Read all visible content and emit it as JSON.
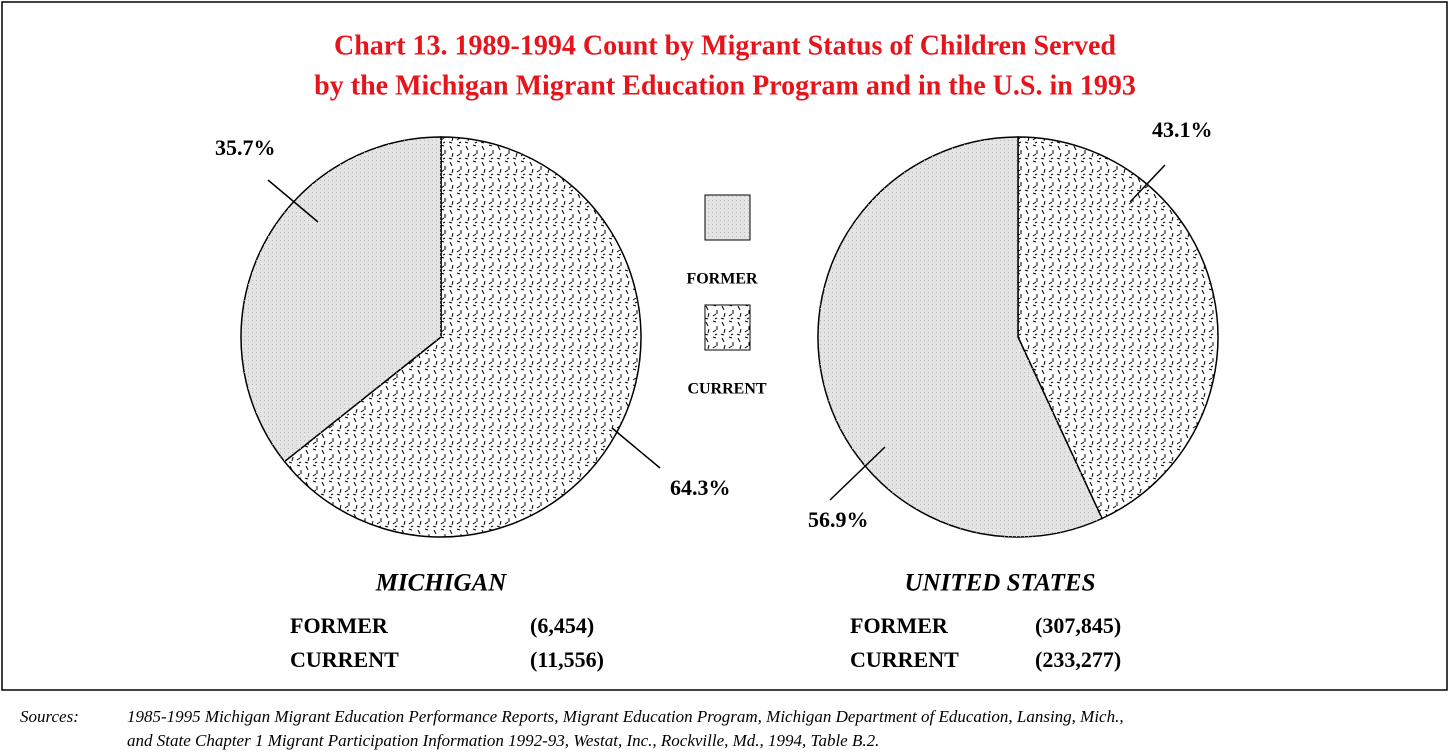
{
  "title": [
    "Chart 13. 1989-1994 Count by Migrant Status of Children Served",
    "by the Michigan Migrant Education Program and in the U.S. in 1993"
  ],
  "chart_data": [
    {
      "type": "pie",
      "name": "MICHIGAN",
      "categories": [
        "FORMER",
        "CURRENT"
      ],
      "values": [
        35.7,
        64.3
      ],
      "value_labels": [
        "35.7%",
        "64.3%"
      ],
      "counts": [
        6454,
        11556
      ],
      "count_labels": [
        "(6,454)",
        "(11,556)"
      ],
      "colors": [
        "#e4e4e4",
        "#ffffff"
      ]
    },
    {
      "type": "pie",
      "name": "UNITED STATES",
      "categories": [
        "FORMER",
        "CURRENT"
      ],
      "values": [
        56.9,
        43.1
      ],
      "value_labels": [
        "56.9%",
        "43.1%"
      ],
      "counts": [
        307845,
        233277
      ],
      "count_labels": [
        "(307,845)",
        "(233,277)"
      ],
      "colors": [
        "#e4e4e4",
        "#ffffff"
      ]
    }
  ],
  "sources": {
    "label": "Sources:",
    "lines": [
      "1985-1995 Michigan Migrant Education Performance Reports, Migrant Education Program, Michigan Department of Education, Lansing, Mich.,",
      "and State Chapter 1 Migrant Participation Information 1992-93, Westat, Inc., Rockville, Md., 1994, Table B.2."
    ]
  }
}
